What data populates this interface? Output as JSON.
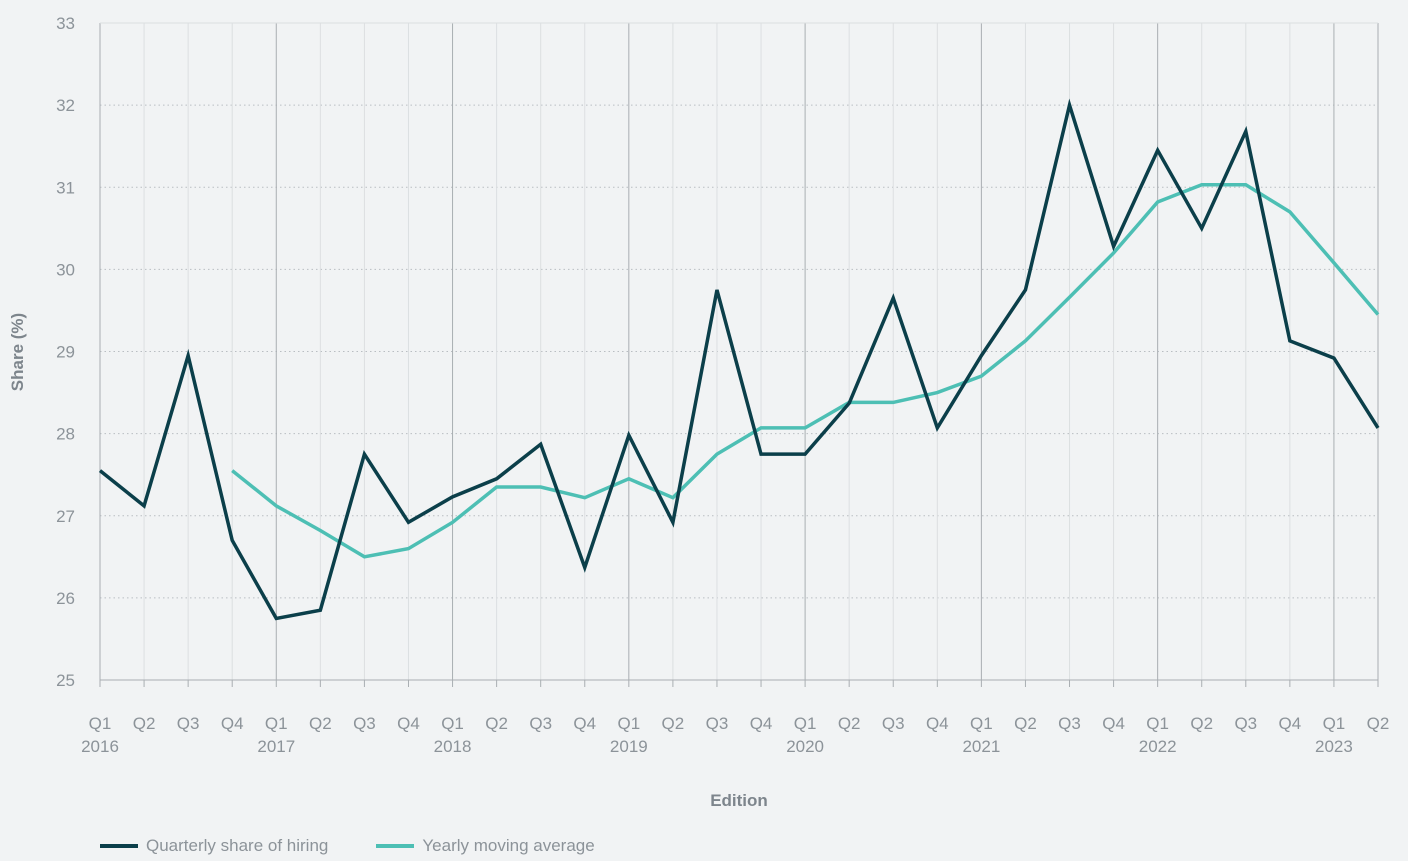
{
  "chart_data": {
    "type": "line",
    "x": [
      "Q1 2016",
      "Q2 2016",
      "Q3 2016",
      "Q4 2016",
      "Q1 2017",
      "Q2 2017",
      "Q3 2017",
      "Q4 2017",
      "Q1 2018",
      "Q2 2018",
      "Q3 2018",
      "Q4 2018",
      "Q1 2019",
      "Q2 2019",
      "Q3 2019",
      "Q4 2019",
      "Q1 2020",
      "Q2 2020",
      "Q3 2020",
      "Q4 2020",
      "Q1 2021",
      "Q2 2021",
      "Q3 2021",
      "Q4 2021",
      "Q1 2022",
      "Q2 2022",
      "Q3 2022",
      "Q4 2022",
      "Q1 2023",
      "Q2 2023"
    ],
    "quarter_labels": [
      "Q1",
      "Q2",
      "Q3",
      "Q4",
      "Q1",
      "Q2",
      "Q3",
      "Q4",
      "Q1",
      "Q2",
      "Q3",
      "Q4",
      "Q1",
      "Q2",
      "Q3",
      "Q4",
      "Q1",
      "Q2",
      "Q3",
      "Q4",
      "Q1",
      "Q2",
      "Q3",
      "Q4",
      "Q1",
      "Q2",
      "Q3",
      "Q4",
      "Q1",
      "Q2"
    ],
    "year_labels": [
      "2016",
      "2017",
      "2018",
      "2019",
      "2020",
      "2021",
      "2022",
      "2023"
    ],
    "series": [
      {
        "name": "Quarterly share of hiring",
        "color": "#0b3f4a",
        "values": [
          27.55,
          27.12,
          28.95,
          26.7,
          25.75,
          25.85,
          27.75,
          26.92,
          27.23,
          27.45,
          27.87,
          26.37,
          27.98,
          26.92,
          29.75,
          27.75,
          27.75,
          28.37,
          29.65,
          28.07,
          28.95,
          29.75,
          32.0,
          30.28,
          31.45,
          30.5,
          31.68,
          29.13,
          28.92,
          28.07
        ]
      },
      {
        "name": "Yearly moving average",
        "color": "#4dbfb4",
        "values": [
          null,
          null,
          null,
          27.55,
          27.12,
          26.82,
          26.5,
          26.6,
          26.92,
          27.35,
          27.35,
          27.22,
          27.45,
          27.22,
          27.75,
          28.07,
          28.07,
          28.38,
          28.38,
          28.5,
          28.7,
          29.13,
          29.66,
          30.2,
          30.82,
          31.03,
          31.03,
          30.7,
          30.08,
          29.45
        ]
      }
    ],
    "xlabel": "Edition",
    "ylabel": "Share (%)",
    "ylim": [
      25,
      33
    ],
    "yticks": [
      25,
      26,
      27,
      28,
      29,
      30,
      31,
      32,
      33
    ],
    "grid": true,
    "legend_position": "bottom-left"
  }
}
